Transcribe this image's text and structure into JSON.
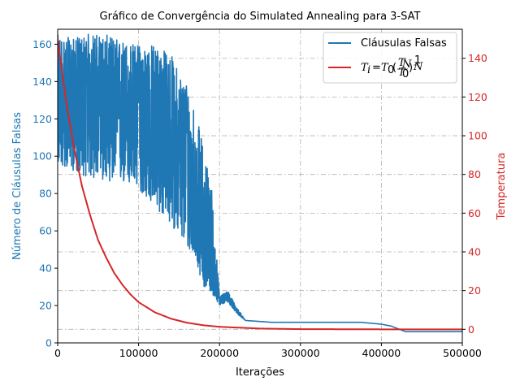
{
  "chart_data": {
    "type": "line",
    "title": "Gráfico de Convergência do Simulated Annealing para 3-SAT",
    "xlabel": "Iterações",
    "ylabel": "Número de Cláusulas Falsas",
    "y2label": "Temperatura",
    "xlim": [
      0,
      500000
    ],
    "ylim": [
      0,
      168
    ],
    "y2lim": [
      -7,
      155
    ],
    "x_ticks": [
      0,
      100000,
      200000,
      300000,
      400000,
      500000
    ],
    "y_ticks": [
      0,
      20,
      40,
      60,
      80,
      100,
      120,
      140,
      160
    ],
    "y2_ticks": [
      0,
      20,
      40,
      60,
      80,
      100,
      120,
      140
    ],
    "grid": true,
    "legend_position": "top-right",
    "colors": {
      "false_clauses": "#1f77b4",
      "temperature": "#d62728"
    },
    "series": [
      {
        "name": "Cláusulas Falsas",
        "axis": "left",
        "x": [
          0,
          20000,
          40000,
          60000,
          80000,
          100000,
          120000,
          140000,
          150000,
          160000,
          170000,
          180000,
          190000,
          200000,
          210000,
          220000,
          232000,
          265000,
          375000,
          400000,
          412000,
          430000,
          500000
        ],
        "mean": [
          130,
          128,
          127,
          126,
          124,
          122,
          115,
          105,
          98,
          90,
          80,
          60,
          40,
          22,
          26,
          18,
          12,
          11,
          11,
          10,
          9,
          6,
          6
        ],
        "low": [
          95,
          92,
          88,
          87,
          85,
          82,
          72,
          63,
          58,
          50,
          45,
          30,
          27,
          20,
          22,
          16,
          12,
          11,
          11,
          10,
          9,
          6,
          6
        ],
        "high": [
          165,
          163,
          166,
          165,
          162,
          160,
          160,
          155,
          145,
          140,
          125,
          105,
          85,
          25,
          28,
          20,
          12,
          11,
          11,
          10,
          9,
          6,
          6
        ]
      },
      {
        "name": "T_i = T_0 (T_N / T_0)^(1/N)",
        "axis": "right",
        "x": [
          0,
          10000,
          20000,
          30000,
          40000,
          50000,
          60000,
          70000,
          80000,
          90000,
          100000,
          120000,
          140000,
          160000,
          180000,
          200000,
          250000,
          300000,
          400000,
          500000
        ],
        "values": [
          150,
          119,
          94,
          74,
          59,
          46,
          37,
          29,
          23,
          18,
          14,
          8.8,
          5.5,
          3.4,
          2.1,
          1.3,
          0.4,
          0.1,
          0.0,
          0.0
        ]
      }
    ]
  }
}
